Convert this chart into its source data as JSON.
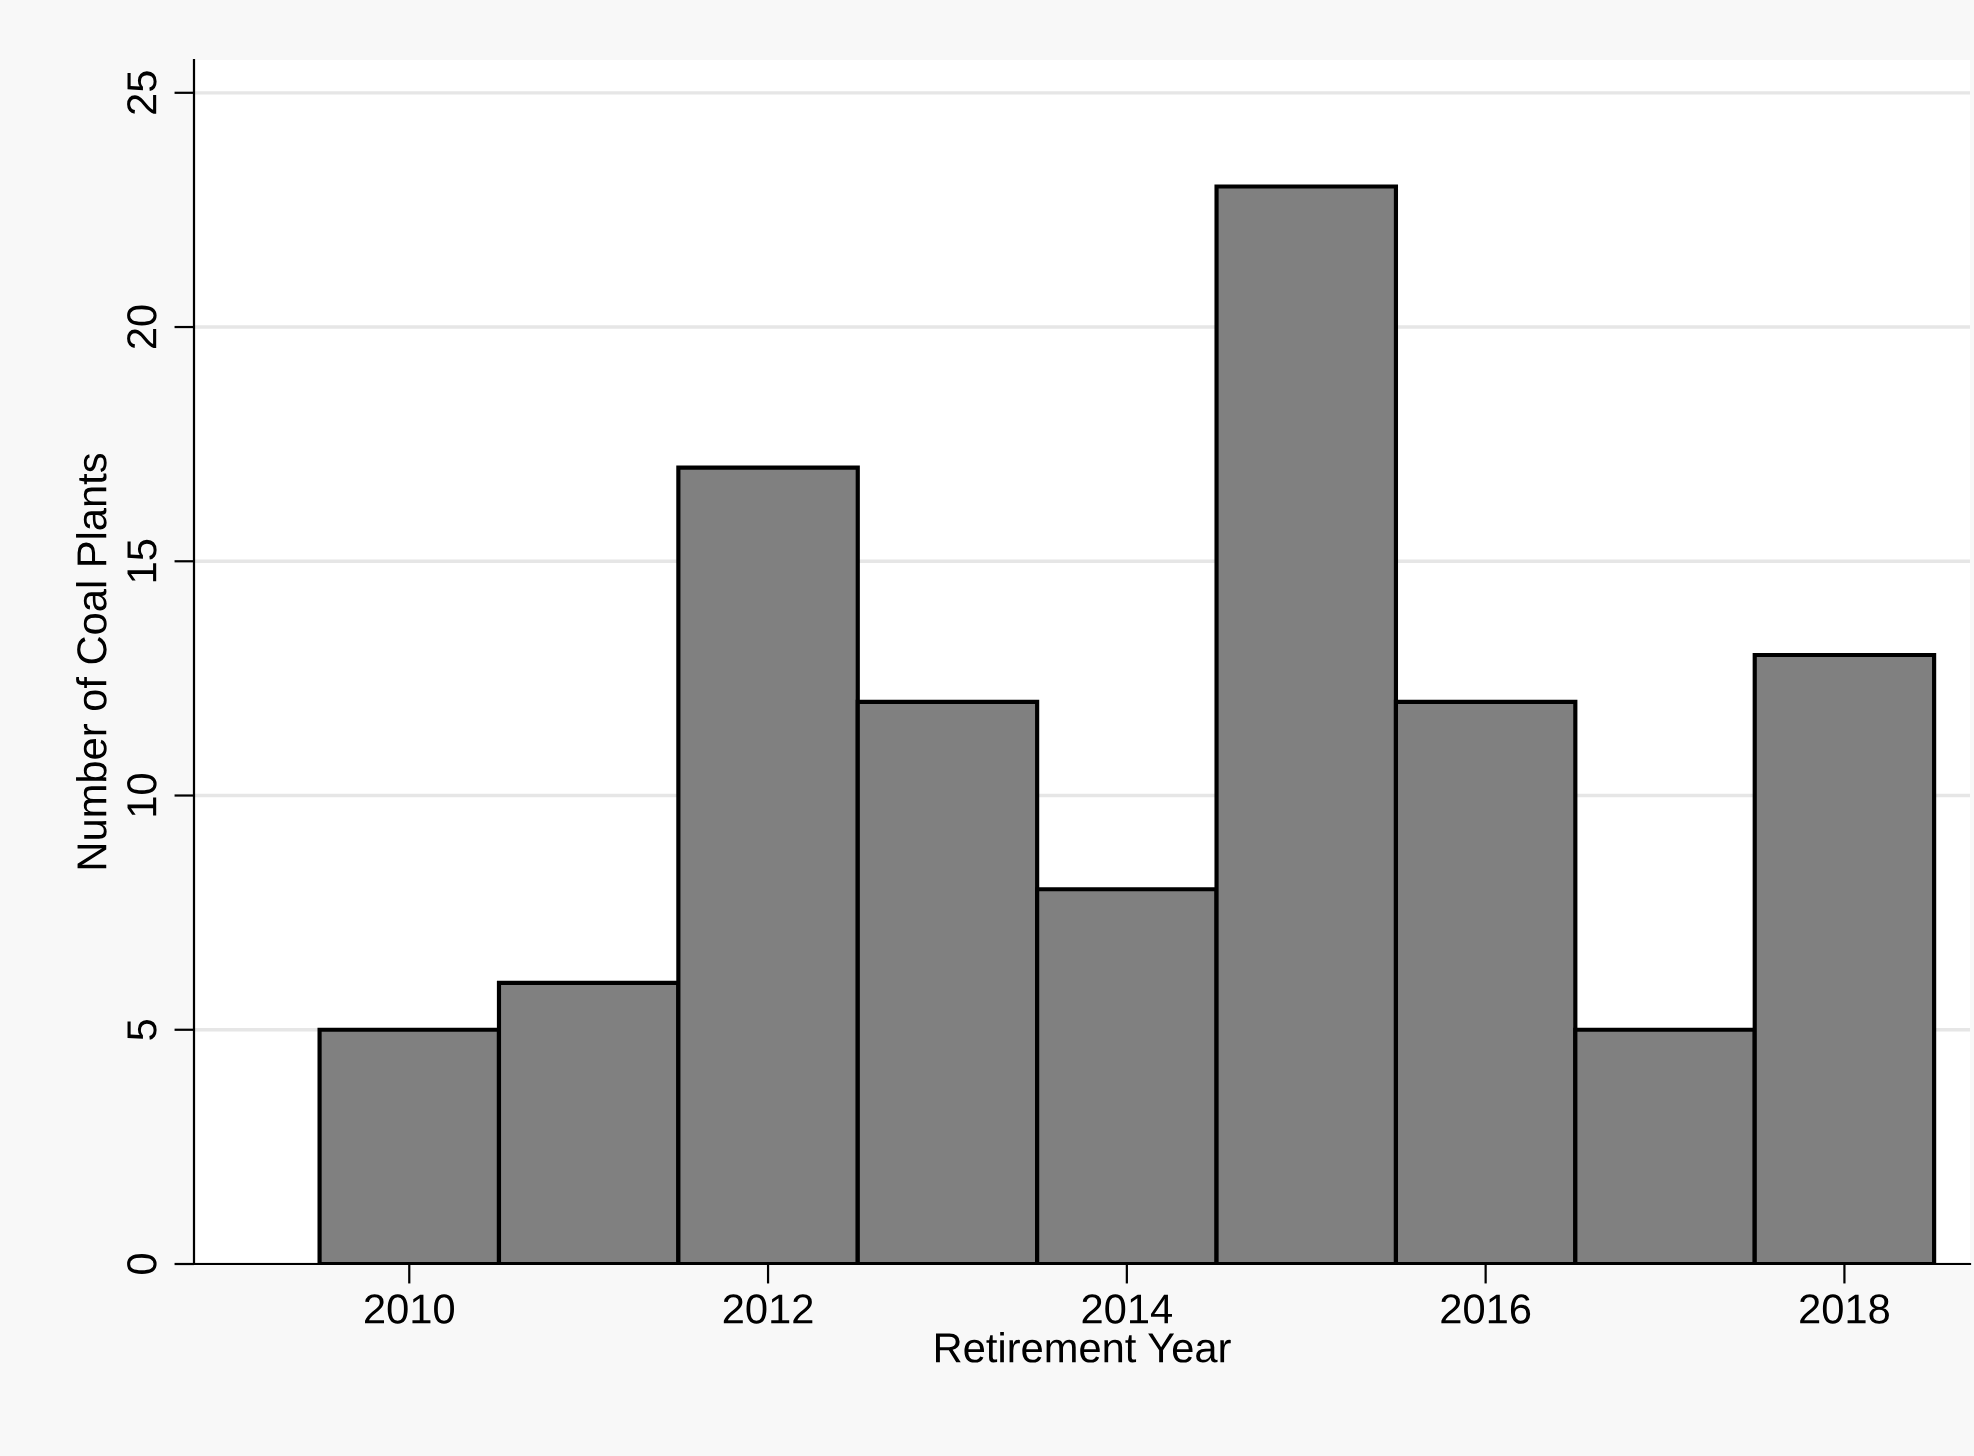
{
  "chart_data": {
    "type": "histogram",
    "xlabel": "Retirement Year",
    "ylabel": "Number of Coal Plants",
    "bins": [
      2009.5,
      2010.5,
      2011.5,
      2012.5,
      2013.5,
      2014.5,
      2015.5,
      2016.5,
      2017.5,
      2018.5
    ],
    "values": [
      5,
      6,
      17,
      12,
      8,
      23,
      12,
      5,
      13
    ],
    "color": "#808080",
    "xlim": [
      2008.8,
      2018.7
    ],
    "xticks": [
      2010,
      2012,
      2014,
      2016,
      2018
    ],
    "ylim": [
      0,
      25.7
    ],
    "yticks": [
      0,
      5,
      10,
      15,
      20,
      25
    ],
    "grid": "y"
  }
}
